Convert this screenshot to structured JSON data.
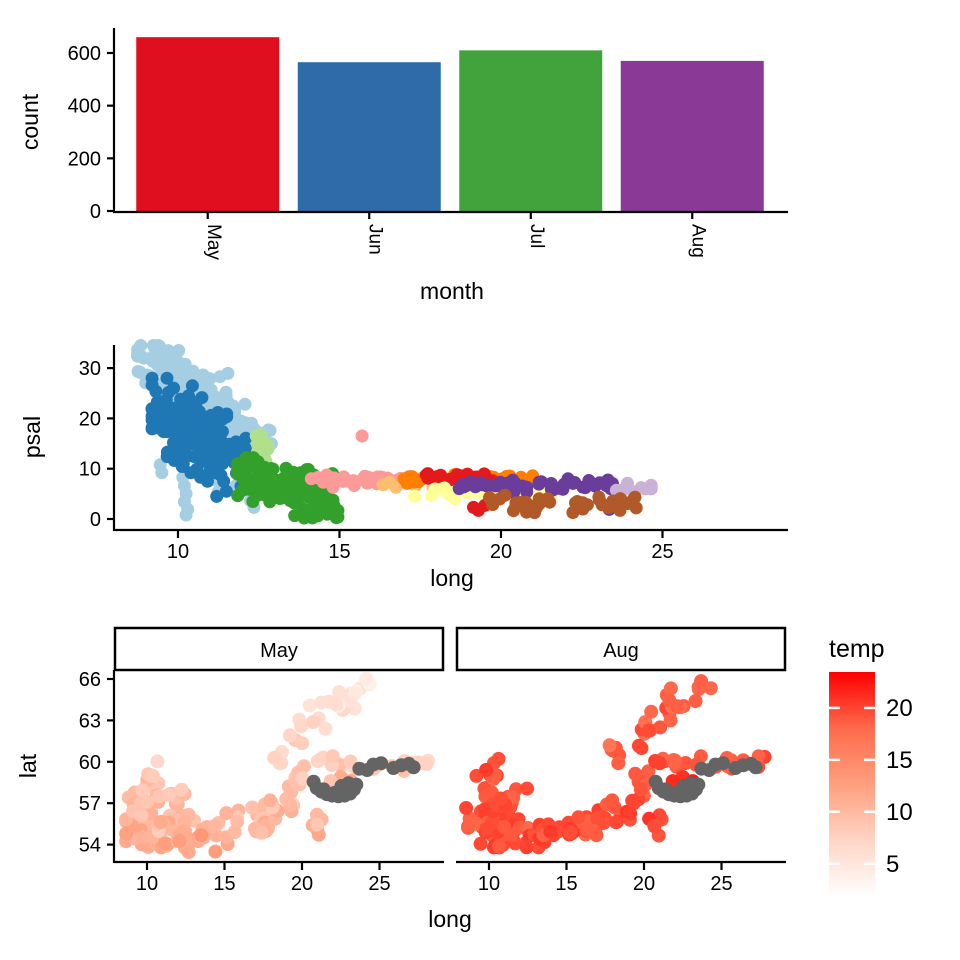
{
  "page": {
    "background": "#ffffff"
  },
  "chart_data": [
    {
      "id": "bar_count_by_month",
      "type": "bar",
      "xlabel": "month",
      "ylabel": "count",
      "categories": [
        "May",
        "Jun",
        "Jul",
        "Aug"
      ],
      "values": [
        660,
        565,
        610,
        570
      ],
      "bar_colors": [
        "#DF0F1F",
        "#2E6BA8",
        "#42A23C",
        "#8A3A96"
      ],
      "yticks": [
        0,
        200,
        400,
        600
      ],
      "ylim": [
        0,
        693
      ],
      "x_tick_rotation": 90,
      "grid": false,
      "legend": "none"
    },
    {
      "id": "scatter_psal_vs_long",
      "type": "scatter",
      "xlabel": "long",
      "ylabel": "psal",
      "xticks": [
        10,
        15,
        20,
        25
      ],
      "yticks": [
        0,
        10,
        20,
        30
      ],
      "xlim": [
        8.05,
        28.85
      ],
      "ylim": [
        -2,
        34.6
      ],
      "grid": false,
      "legend": "none",
      "point_radius_px": 6.5,
      "clusters": [
        {
          "color": "#A6CEE3",
          "type": "gauss",
          "n": 215,
          "cx": 10.7,
          "cy": 24,
          "sx": 1.0,
          "sy": 5.4,
          "rho": -0.82,
          "clampx": [
            8.75,
            13.35
          ],
          "clampy": [
            11.5,
            34.5
          ]
        },
        {
          "color": "#A6CEE3",
          "type": "pts",
          "pts": [
            [
              10.15,
              8.3
            ],
            [
              10.2,
              6.6
            ],
            [
              10.25,
              5.0
            ],
            [
              10.2,
              3.4
            ],
            [
              10.3,
              1.9
            ],
            [
              10.25,
              0.8
            ],
            [
              12.2,
              6.2
            ],
            [
              12.3,
              4.9
            ],
            [
              12.25,
              3.6
            ],
            [
              12.35,
              2.3
            ],
            [
              12.3,
              5.5
            ],
            [
              11.25,
              5.4
            ],
            [
              11.8,
              6.6
            ],
            [
              11.15,
              7.8
            ],
            [
              9.45,
              10.8
            ],
            [
              9.5,
              9.2
            ]
          ]
        },
        {
          "color": "#1F78B4",
          "type": "gauss",
          "n": 195,
          "cx": 10.5,
          "cy": 17.5,
          "sx": 0.72,
          "sy": 4.3,
          "rho": -0.55,
          "clampx": [
            9.2,
            12.1
          ],
          "clampy": [
            7.5,
            28
          ]
        },
        {
          "color": "#1F78B4",
          "type": "pts",
          "pts": [
            [
              10.7,
              8.3
            ],
            [
              11.5,
              5.5
            ],
            [
              11.95,
              6.5
            ],
            [
              11.2,
              4.5
            ],
            [
              10.4,
              9.2
            ]
          ]
        },
        {
          "color": "#B2DF8A",
          "type": "band",
          "n": 16,
          "x0": 12.42,
          "x1": 12.85,
          "cy": 14.5,
          "sy": 2.4,
          "clampy": [
            10.2,
            19.2
          ]
        },
        {
          "color": "#33A02C",
          "type": "gauss",
          "n": 110,
          "cx": 13.1,
          "cy": 7.2,
          "sx": 0.75,
          "sy": 2.2,
          "rho": -0.35,
          "clampx": [
            11.85,
            15.0
          ],
          "clampy": [
            0.5,
            12.2
          ]
        },
        {
          "color": "#33A02C",
          "type": "gauss",
          "n": 28,
          "cx": 14.35,
          "cy": 2.2,
          "sx": 0.35,
          "sy": 1.4,
          "clampx": [
            13.6,
            14.95
          ],
          "clampy": [
            0.2,
            5.5
          ]
        },
        {
          "color": "#FB9A99",
          "type": "band",
          "n": 55,
          "x0": 14.1,
          "x1": 17.6,
          "cy": 7.9,
          "sy": 0.5,
          "clampy": [
            6.3,
            9.2
          ]
        },
        {
          "color": "#FB9A99",
          "type": "pts",
          "pts": [
            [
              15.7,
              16.5
            ]
          ]
        },
        {
          "color": "#FDBF6F",
          "type": "pts",
          "pts": [
            [
              16.35,
              6.8
            ],
            [
              16.55,
              7.3
            ],
            [
              16.75,
              6.3
            ],
            [
              17.35,
              6.6
            ],
            [
              18.15,
              6.9
            ],
            [
              20.6,
              6.9
            ],
            [
              21.05,
              6.6
            ],
            [
              17.9,
              6.2
            ]
          ]
        },
        {
          "color": "#FF7F00",
          "type": "band",
          "n": 40,
          "x0": 17.0,
          "x1": 21.0,
          "cy": 7.8,
          "sy": 0.45,
          "clampy": [
            6.6,
            9.0
          ]
        },
        {
          "color": "#E31A1C",
          "type": "band",
          "n": 24,
          "x0": 17.55,
          "x1": 19.8,
          "cy": 8.35,
          "sy": 0.35,
          "clampy": [
            7.4,
            9.2
          ]
        },
        {
          "color": "#E31A1C",
          "type": "pts",
          "pts": [
            [
              19.3,
              1.7
            ],
            [
              19.5,
              2.7
            ],
            [
              19.15,
              2.3
            ]
          ]
        },
        {
          "color": "#FFFF99",
          "type": "band",
          "n": 46,
          "x0": 17.3,
          "x1": 21.6,
          "cy": 5.2,
          "sy": 0.65,
          "clampy": [
            3.6,
            6.8
          ]
        },
        {
          "color": "#6A3D9A",
          "type": "band",
          "n": 58,
          "x0": 18.7,
          "x1": 23.6,
          "cy": 6.6,
          "sy": 0.55,
          "clampy": [
            5.2,
            8.0
          ]
        },
        {
          "color": "#6A3D9A",
          "type": "pts",
          "pts": [
            [
              23.35,
              1.9
            ]
          ]
        },
        {
          "color": "#CAB2D6",
          "type": "gauss",
          "n": 11,
          "cx": 24.1,
          "cy": 5.9,
          "sx": 0.33,
          "sy": 0.55,
          "clampx": [
            23.55,
            24.65
          ],
          "clampy": [
            4.6,
            7.2
          ]
        },
        {
          "color": "#B15928",
          "type": "band",
          "n": 44,
          "x0": 19.6,
          "x1": 24.3,
          "cy": 3.1,
          "sy": 0.85,
          "clampy": [
            0.4,
            5.2
          ]
        }
      ]
    },
    {
      "id": "facet_lat_vs_long_by_temp",
      "type": "scatter-facet",
      "facets": [
        "May",
        "Aug"
      ],
      "xlabel": "long",
      "ylabel": "lat",
      "legend_title": "temp",
      "xticks": [
        10,
        15,
        20,
        25
      ],
      "yticks": [
        54,
        57,
        60,
        63,
        66
      ],
      "xlim": [
        7.94,
        29.1
      ],
      "ylim": [
        52.8,
        66.6
      ],
      "legend_ticks": [
        5,
        10,
        15,
        20
      ],
      "temp_domain": [
        1.8,
        23.46
      ],
      "gradient": {
        "low": "#FFFFFF",
        "high": "#FF0000",
        "ramp": [
          "#FFFFFF",
          "#FFD5C6",
          "#FF9F7E",
          "#FF6A4C",
          "#FF0000"
        ]
      },
      "na_color": "#646464",
      "grid": false,
      "point_radius_px": 7,
      "temp_model": {
        "May": {
          "base": 11.2,
          "lat_slope": -0.55,
          "noise": 0.9,
          "clamp": [
            2.6,
            13.5
          ]
        },
        "Aug": {
          "base": 19.8,
          "lat_slope": -0.13,
          "noise": 0.7,
          "clamp": [
            14.8,
            22.2
          ]
        }
      },
      "clusters": [
        {
          "name": "southwest-dense",
          "type": "gauss",
          "n": 66,
          "cx": 10.6,
          "cy": 55.2,
          "sx": 1.1,
          "sy": 0.8,
          "clampx": [
            8.65,
            13.2
          ],
          "clampy": [
            53.8,
            57.0
          ]
        },
        {
          "name": "kattegat-arc",
          "type": "line",
          "n": 13,
          "x0": 8.9,
          "y0": 56.8,
          "x1": 10.75,
          "y1": 60.05,
          "jx": 0.28,
          "jy": 0.25
        },
        {
          "name": "kattegat-arm",
          "type": "line",
          "n": 13,
          "x0": 9.35,
          "y0": 56.4,
          "x1": 12.6,
          "y1": 58.2,
          "jx": 0.25,
          "jy": 0.3
        },
        {
          "name": "south-coast-band",
          "type": "line",
          "n": 52,
          "x0": 12.0,
          "y0": 54.3,
          "x1": 18.5,
          "y1": 56.1,
          "jx": 0.4,
          "jy": 0.45,
          "clampy": [
            53.2,
            57.0
          ]
        },
        {
          "name": "south-curl",
          "type": "pts",
          "pts": [
            [
              17.6,
              56.9
            ],
            [
              18.1,
              56.7
            ],
            [
              17.95,
              57.2
            ]
          ]
        },
        {
          "name": "east-baltic-band",
          "type": "line",
          "n": 15,
          "x0": 19.0,
          "y0": 56.5,
          "x1": 20.3,
          "y1": 59.9,
          "jx": 0.3,
          "jy": 0.3
        },
        {
          "name": "gulf-of-bothnia",
          "type": "line",
          "n": 30,
          "x0": 17.7,
          "y0": 60.4,
          "x1": 24.3,
          "y1": 65.8,
          "jx": 0.45,
          "jy": 0.55,
          "clampy": [
            59.9,
            66.3
          ]
        },
        {
          "name": "gulf-of-finland",
          "type": "band",
          "n": 22,
          "x0": 20.6,
          "x1": 28.2,
          "cy": 59.85,
          "sy": 0.3,
          "clampy": [
            59.2,
            60.4
          ]
        },
        {
          "name": "riga-mouth-warm",
          "type": "pts",
          "temp_shift": 2.5,
          "pts": [
            [
              22.5,
              58.9
            ],
            [
              23.15,
              58.6
            ],
            [
              21.85,
              58.6
            ]
          ]
        },
        {
          "name": "gotland-blob",
          "type": "gauss",
          "n": 7,
          "cx": 20.95,
          "cy": 55.4,
          "sx": 0.25,
          "sy": 0.5
        },
        {
          "name": "gulf-of-riga-na",
          "type": "pts",
          "gray": true,
          "pts": [
            [
              20.75,
              58.55
            ],
            [
              20.95,
              58.1
            ],
            [
              21.25,
              57.85
            ],
            [
              21.6,
              57.65
            ],
            [
              21.95,
              57.55
            ],
            [
              22.35,
              57.5
            ],
            [
              22.75,
              57.55
            ],
            [
              23.1,
              57.7
            ],
            [
              23.35,
              58.0
            ],
            [
              23.5,
              58.35
            ],
            [
              21.4,
              58.0
            ],
            [
              22.1,
              57.75
            ],
            [
              22.55,
              58.25
            ],
            [
              23.0,
              58.45
            ]
          ]
        },
        {
          "name": "finland-na",
          "type": "pts",
          "gray": true,
          "pts": [
            [
              23.7,
              59.5
            ],
            [
              24.6,
              59.8
            ],
            [
              25.1,
              59.9
            ],
            [
              25.9,
              59.55
            ],
            [
              26.4,
              59.75
            ],
            [
              27.2,
              59.6
            ],
            [
              24.2,
              59.4
            ],
            [
              26.9,
              59.85
            ]
          ]
        }
      ]
    }
  ]
}
